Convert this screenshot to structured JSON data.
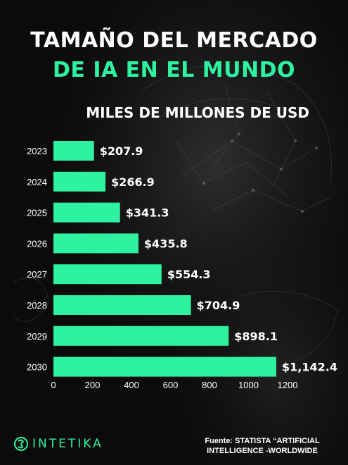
{
  "header": {
    "title_line1": "TAMAÑO DEL MERCADO",
    "title_line2": "DE IA EN EL MUNDO",
    "unit_label": "MILES DE MILLONES DE USD"
  },
  "footer": {
    "brand": "INTETIKA",
    "source": "Fuente: STATISTA “ARTIFICIAL INTELLIGENCE -WORLDWIDE"
  },
  "colors": {
    "accent": "#2ef2a0",
    "bar": "#2ef2a0",
    "text": "#ffffff",
    "background": "#0b0b0b"
  },
  "chart_data": {
    "type": "bar",
    "orientation": "horizontal",
    "categories": [
      "2023",
      "2024",
      "2025",
      "2026",
      "2027",
      "2028",
      "2029",
      "2030"
    ],
    "values": [
      207.9,
      266.9,
      341.3,
      435.8,
      554.3,
      704.9,
      898.1,
      1142.4
    ],
    "value_labels": [
      "$207.9",
      "$266.9",
      "$341.3",
      "$435.8",
      "$554.3",
      "$704.9",
      "$898.1",
      "$1,142.4"
    ],
    "x_ticks": [
      0,
      200,
      400,
      600,
      800,
      1000,
      1200
    ],
    "xlim": [
      0,
      1200
    ],
    "grid": false,
    "legend": "none"
  }
}
